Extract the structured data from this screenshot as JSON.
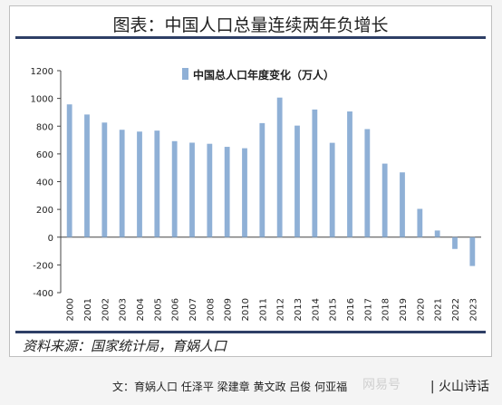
{
  "caption": "文：育娲人口 任泽平 梁建章 黄文政 吕俊 何亚福",
  "watermark": "网易号",
  "brand": "| 火山诗话",
  "colors": {
    "bar": "#8fb0d6",
    "rule": "#2e3f66"
  },
  "chart_data": {
    "type": "bar",
    "title": "图表：中国人口总量连续两年负增长",
    "source": "资料来源：国家统计局，育娲人口",
    "categories": [
      "2000",
      "2001",
      "2002",
      "2003",
      "2004",
      "2005",
      "2006",
      "2007",
      "2008",
      "2009",
      "2010",
      "2011",
      "2012",
      "2013",
      "2014",
      "2015",
      "2016",
      "2017",
      "2018",
      "2019",
      "2020",
      "2021",
      "2022",
      "2023"
    ],
    "series": [
      {
        "name": "中国总人口年度变化（万人）",
        "values": [
          957,
          884,
          826,
          774,
          761,
          768,
          692,
          681,
          673,
          651,
          641,
          822,
          1006,
          804,
          920,
          680,
          906,
          779,
          530,
          467,
          204,
          48,
          -85,
          -208
        ]
      }
    ],
    "legend": "top-center",
    "ylim": [
      -400,
      1200
    ],
    "yticks": [
      -400,
      -200,
      0,
      200,
      400,
      600,
      800,
      1000,
      1200
    ],
    "xlabel": "",
    "ylabel": "",
    "grid": false
  }
}
